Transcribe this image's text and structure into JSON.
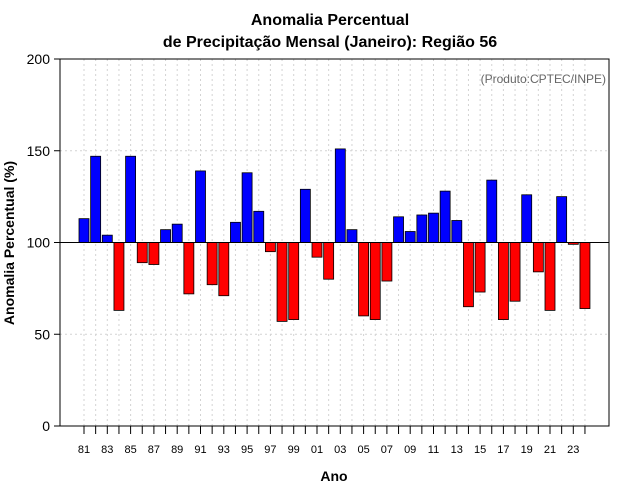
{
  "chart_data": {
    "type": "bar",
    "title": [
      "Anomalia Percentual",
      "de Precipitação Mensal (Janeiro): Região 56"
    ],
    "annotation": "(Produto:CPTEC/INPE)",
    "xlabel": "Ano",
    "ylabel": "Anomalia Percentual (%)",
    "ylim": [
      0,
      200
    ],
    "yticks": [
      0,
      50,
      100,
      150,
      200
    ],
    "baseline": 100,
    "grid": true,
    "categories": [
      "81",
      "82",
      "83",
      "84",
      "85",
      "86",
      "87",
      "88",
      "89",
      "90",
      "91",
      "92",
      "93",
      "94",
      "95",
      "96",
      "97",
      "98",
      "99",
      "00",
      "01",
      "02",
      "03",
      "04",
      "05",
      "06",
      "07",
      "08",
      "09",
      "10",
      "11",
      "12",
      "13",
      "14",
      "15",
      "16",
      "17",
      "18",
      "19",
      "20",
      "21",
      "22",
      "23",
      "24"
    ],
    "xtick_labels": [
      "81",
      "83",
      "85",
      "87",
      "89",
      "91",
      "93",
      "95",
      "97",
      "99",
      "01",
      "03",
      "05",
      "07",
      "09",
      "11",
      "13",
      "15",
      "17",
      "19",
      "21",
      "23"
    ],
    "values": [
      113,
      147,
      104,
      63,
      147,
      89,
      88,
      107,
      110,
      72,
      139,
      77,
      71,
      111,
      138,
      117,
      95,
      57,
      58,
      129,
      92,
      80,
      151,
      107,
      60,
      58,
      79,
      114,
      106,
      115,
      116,
      128,
      112,
      65,
      73,
      134,
      58,
      68,
      126,
      84,
      63,
      125,
      99,
      64
    ],
    "colors": {
      "above": "#0000ff",
      "below": "#ff0000",
      "outline": "#000000",
      "grid": "#d3d3d3"
    }
  }
}
